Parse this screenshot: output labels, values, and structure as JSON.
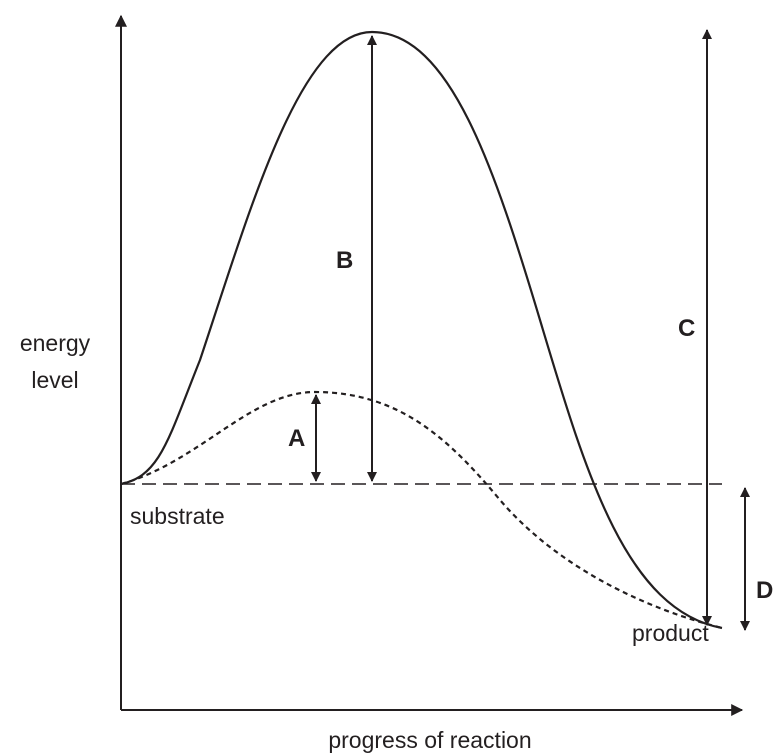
{
  "y_axis_label": [
    "energy",
    "level"
  ],
  "x_axis_label": "progress of reaction",
  "labels": {
    "a": "A",
    "b": "B",
    "c": "C",
    "d": "D",
    "substrate": "substrate",
    "product": "product"
  }
}
